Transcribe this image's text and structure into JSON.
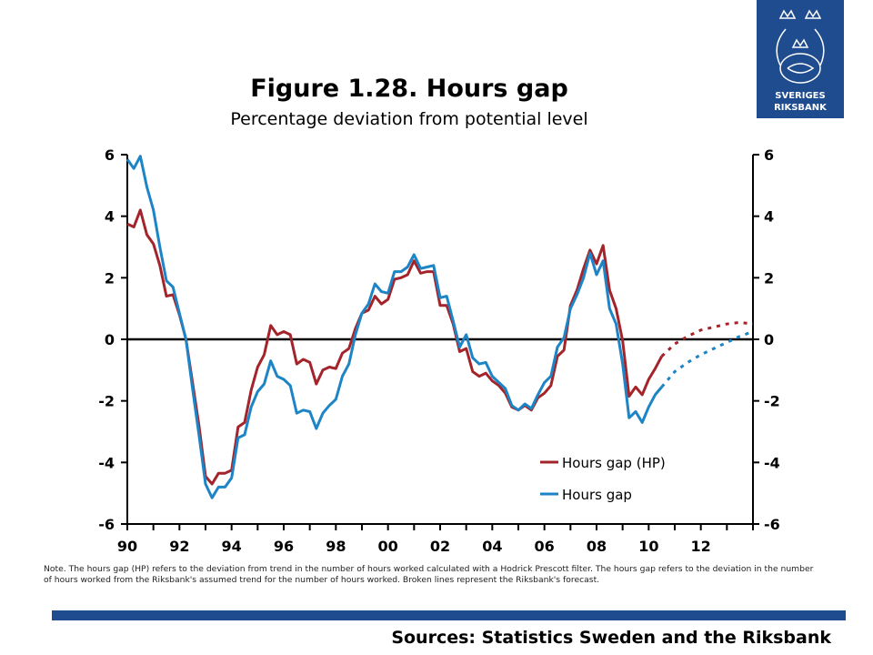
{
  "header": {
    "title": "Figure 1.28. Hours gap",
    "subtitle": "Percentage deviation from potential level"
  },
  "logo": {
    "line1": "SVERIGES",
    "line2": "RIKSBANK",
    "color": "#1f4c8f"
  },
  "note": "Note. The hours gap (HP) refers to the deviation from trend in the number of hours worked calculated with a Hodrick Prescott filter. The hours gap refers to the deviation in the number of hours worked from the Riksbank's assumed trend for the number of hours worked. Broken lines represent the Riksbank's forecast.",
  "sources": "Sources: Statistics Sweden and the Riksbank",
  "chart_data": {
    "type": "line",
    "title": "Figure 1.28. Hours gap",
    "subtitle": "Percentage deviation from potential level",
    "xlim": [
      1990,
      2014
    ],
    "ylim": [
      -6,
      6
    ],
    "x_tick_labels": [
      "90",
      "92",
      "94",
      "96",
      "98",
      "00",
      "02",
      "04",
      "06",
      "08",
      "10",
      "12"
    ],
    "x_tick_values": [
      1990,
      1992,
      1994,
      1996,
      1998,
      2000,
      2002,
      2004,
      2006,
      2008,
      2010,
      2012
    ],
    "y_ticks": [
      -6,
      -4,
      -2,
      0,
      2,
      4,
      6
    ],
    "grid": false,
    "legend_position": "bottom-right",
    "series": [
      {
        "name": "Hours gap (HP)",
        "color": "#a3242b",
        "x": [
          1990.0,
          1990.25,
          1990.5,
          1990.75,
          1991.0,
          1991.25,
          1991.5,
          1991.75,
          1992.0,
          1992.25,
          1992.5,
          1992.75,
          1993.0,
          1993.25,
          1993.5,
          1993.75,
          1994.0,
          1994.25,
          1994.5,
          1994.75,
          1995.0,
          1995.25,
          1995.5,
          1995.75,
          1996.0,
          1996.25,
          1996.5,
          1996.75,
          1997.0,
          1997.25,
          1997.5,
          1997.75,
          1998.0,
          1998.25,
          1998.5,
          1998.75,
          1999.0,
          1999.25,
          1999.5,
          1999.75,
          2000.0,
          2000.25,
          2000.5,
          2000.75,
          2001.0,
          2001.25,
          2001.5,
          2001.75,
          2002.0,
          2002.25,
          2002.5,
          2002.75,
          2003.0,
          2003.25,
          2003.5,
          2003.75,
          2004.0,
          2004.25,
          2004.5,
          2004.75,
          2005.0,
          2005.25,
          2005.5,
          2005.75,
          2006.0,
          2006.25,
          2006.5,
          2006.75,
          2007.0,
          2007.25,
          2007.5,
          2007.75,
          2008.0,
          2008.25,
          2008.5,
          2008.75,
          2009.0,
          2009.25,
          2009.5,
          2009.75,
          2010.0,
          2010.25,
          2010.5
        ],
        "values": [
          3.75,
          3.65,
          4.2,
          3.4,
          3.1,
          2.4,
          1.4,
          1.45,
          0.8,
          0.0,
          -1.4,
          -2.8,
          -4.45,
          -4.7,
          -4.35,
          -4.35,
          -4.25,
          -2.85,
          -2.7,
          -1.65,
          -0.9,
          -0.5,
          0.45,
          0.15,
          0.25,
          0.15,
          -0.8,
          -0.65,
          -0.75,
          -1.45,
          -1.0,
          -0.9,
          -0.95,
          -0.45,
          -0.3,
          0.35,
          0.85,
          0.95,
          1.4,
          1.15,
          1.3,
          1.95,
          2.0,
          2.1,
          2.55,
          2.15,
          2.2,
          2.2,
          1.1,
          1.1,
          0.5,
          -0.4,
          -0.3,
          -1.05,
          -1.2,
          -1.1,
          -1.35,
          -1.5,
          -1.75,
          -2.2,
          -2.3,
          -2.15,
          -2.3,
          -1.9,
          -1.75,
          -1.5,
          -0.55,
          -0.35,
          1.1,
          1.6,
          2.3,
          2.9,
          2.45,
          3.05,
          1.6,
          1.0,
          -0.05,
          -1.85,
          -1.55,
          -1.8,
          -1.3,
          -0.95,
          -0.55
        ],
        "forecast_x": [
          2010.5,
          2011.0,
          2011.5,
          2012.0,
          2012.5,
          2013.0,
          2013.5,
          2014.0
        ],
        "forecast_values": [
          -0.55,
          -0.15,
          0.1,
          0.3,
          0.4,
          0.5,
          0.55,
          0.5
        ]
      },
      {
        "name": "Hours gap",
        "color": "#1d84c6",
        "x": [
          1990.0,
          1990.25,
          1990.5,
          1990.75,
          1991.0,
          1991.25,
          1991.5,
          1991.75,
          1992.0,
          1992.25,
          1992.5,
          1992.75,
          1993.0,
          1993.25,
          1993.5,
          1993.75,
          1994.0,
          1994.25,
          1994.5,
          1994.75,
          1995.0,
          1995.25,
          1995.5,
          1995.75,
          1996.0,
          1996.25,
          1996.5,
          1996.75,
          1997.0,
          1997.25,
          1997.5,
          1997.75,
          1998.0,
          1998.25,
          1998.5,
          1998.75,
          1999.0,
          1999.25,
          1999.5,
          1999.75,
          2000.0,
          2000.25,
          2000.5,
          2000.75,
          2001.0,
          2001.25,
          2001.5,
          2001.75,
          2002.0,
          2002.25,
          2002.5,
          2002.75,
          2003.0,
          2003.25,
          2003.5,
          2003.75,
          2004.0,
          2004.25,
          2004.5,
          2004.75,
          2005.0,
          2005.25,
          2005.5,
          2005.75,
          2006.0,
          2006.25,
          2006.5,
          2006.75,
          2007.0,
          2007.25,
          2007.5,
          2007.75,
          2008.0,
          2008.25,
          2008.5,
          2008.75,
          2009.0,
          2009.25,
          2009.5,
          2009.75,
          2010.0,
          2010.25,
          2010.5
        ],
        "values": [
          5.85,
          5.55,
          5.95,
          4.95,
          4.2,
          3.0,
          1.9,
          1.7,
          0.85,
          0.0,
          -1.6,
          -3.1,
          -4.7,
          -5.15,
          -4.8,
          -4.8,
          -4.5,
          -3.2,
          -3.1,
          -2.2,
          -1.7,
          -1.45,
          -0.7,
          -1.2,
          -1.3,
          -1.5,
          -2.4,
          -2.3,
          -2.35,
          -2.9,
          -2.4,
          -2.15,
          -1.95,
          -1.2,
          -0.8,
          0.15,
          0.85,
          1.15,
          1.8,
          1.55,
          1.5,
          2.2,
          2.2,
          2.35,
          2.75,
          2.3,
          2.35,
          2.4,
          1.35,
          1.4,
          0.6,
          -0.25,
          0.15,
          -0.6,
          -0.8,
          -0.75,
          -1.2,
          -1.4,
          -1.6,
          -2.15,
          -2.3,
          -2.1,
          -2.25,
          -1.8,
          -1.4,
          -1.2,
          -0.25,
          0.05,
          1.0,
          1.45,
          2.0,
          2.8,
          2.1,
          2.55,
          1.0,
          0.5,
          -0.8,
          -2.55,
          -2.35,
          -2.7,
          -2.2,
          -1.8,
          -1.55
        ],
        "forecast_x": [
          2010.5,
          2011.0,
          2011.5,
          2012.0,
          2012.5,
          2013.0,
          2013.5,
          2014.0
        ],
        "forecast_values": [
          -1.55,
          -1.05,
          -0.75,
          -0.5,
          -0.3,
          -0.1,
          0.1,
          0.25
        ]
      }
    ]
  }
}
